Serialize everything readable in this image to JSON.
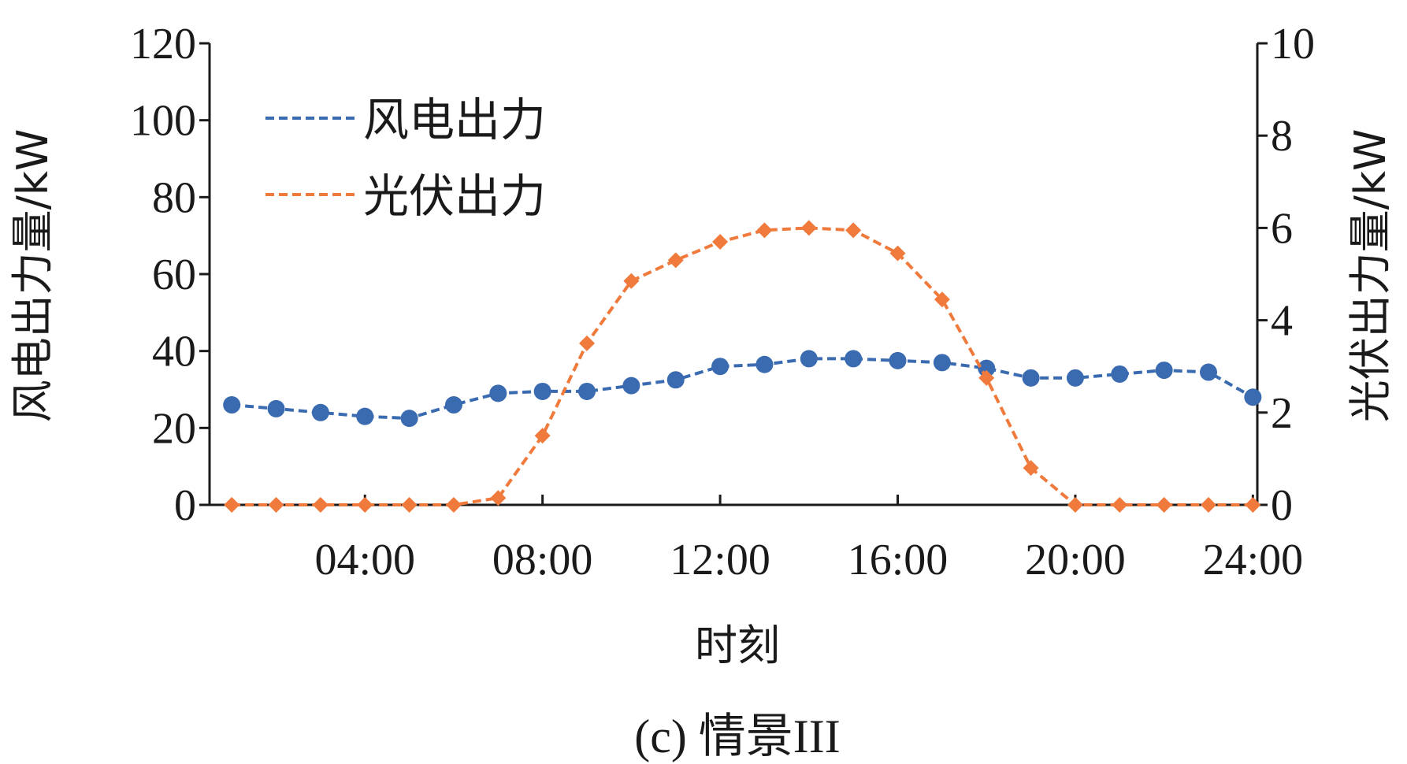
{
  "chart_data": {
    "type": "line",
    "caption": "(c) 情景III",
    "xlabel": "时刻",
    "ylabel_left": "风电出力量/kW",
    "ylabel_right": "光伏出力量/kW",
    "x": [
      1,
      2,
      3,
      4,
      5,
      6,
      7,
      8,
      9,
      10,
      11,
      12,
      13,
      14,
      15,
      16,
      17,
      18,
      19,
      20,
      21,
      22,
      23,
      24
    ],
    "xlim": [
      0.5,
      24.1
    ],
    "x_ticks": [
      4,
      8,
      12,
      16,
      20,
      24
    ],
    "x_tick_labels": [
      "04:00",
      "08:00",
      "12:00",
      "16:00",
      "20:00",
      "24:00"
    ],
    "ylim_left": [
      0,
      120
    ],
    "y_ticks_left": [
      0,
      20,
      40,
      60,
      80,
      100,
      120
    ],
    "ylim_right": [
      0,
      10
    ],
    "y_ticks_right": [
      0,
      2,
      4,
      6,
      8,
      10
    ],
    "grid": false,
    "legend_position": "top-left",
    "series": [
      {
        "name": "风电出力",
        "axis": "left",
        "color": "#3a6bb0",
        "marker": "circle",
        "values": [
          26,
          25,
          24,
          23,
          22.5,
          26,
          29,
          29.5,
          29.5,
          31,
          32.5,
          36,
          36.5,
          38,
          38,
          37.5,
          37,
          35.5,
          33,
          33,
          34,
          35,
          34.5,
          28
        ]
      },
      {
        "name": "光伏出力",
        "axis": "right",
        "color": "#ef7a3c",
        "marker": "diamond",
        "values": [
          0,
          0,
          0,
          0,
          0,
          0,
          0.15,
          1.5,
          3.5,
          4.85,
          5.3,
          5.7,
          5.95,
          6.0,
          5.95,
          5.45,
          4.45,
          2.75,
          0.8,
          0,
          0,
          0,
          0,
          0
        ]
      }
    ]
  }
}
